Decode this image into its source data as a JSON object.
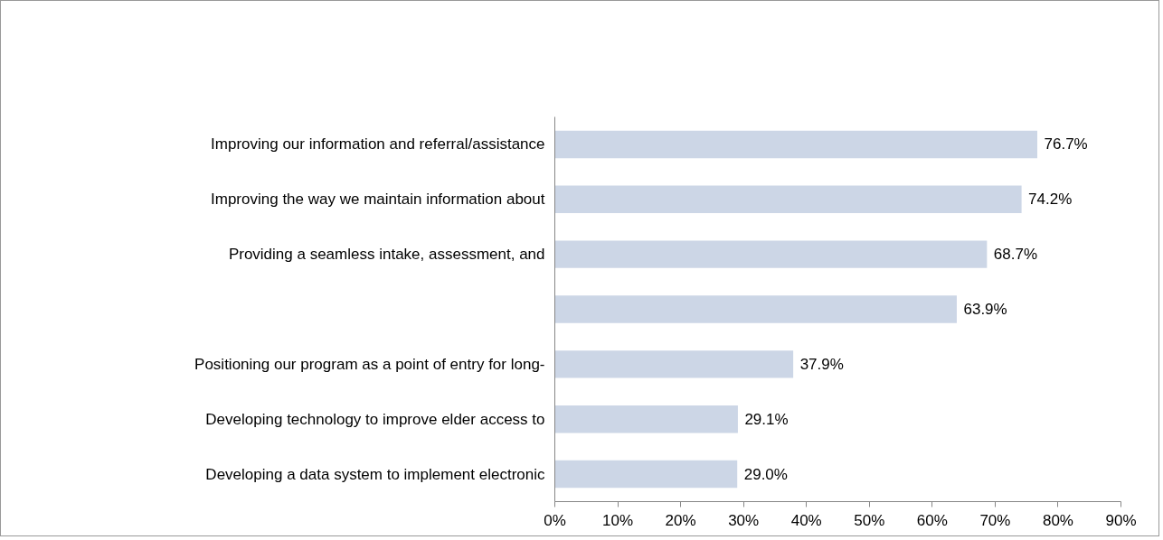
{
  "chart_data": {
    "type": "bar",
    "orientation": "horizontal",
    "categories": [
      "Improving our information and referral/assistance",
      "Improving the way we maintain information about",
      "Providing a seamless intake, assessment, and",
      null,
      "Positioning our program as a point of entry for long-",
      "Developing technology to improve elder access to",
      "Developing a data system to implement electronic"
    ],
    "values": [
      76.7,
      74.2,
      68.7,
      63.9,
      37.9,
      29.1,
      29.0
    ],
    "value_labels": [
      "76.7%",
      "74.2%",
      "68.7%",
      "63.9%",
      "37.9%",
      "29.1%",
      "29.0%"
    ],
    "color": "#ccd6e6",
    "xlim": [
      0,
      90
    ],
    "xticks": [
      {
        "value": 0,
        "label": "0%"
      },
      {
        "value": 10,
        "label": "10%"
      },
      {
        "value": 20,
        "label": "20%"
      },
      {
        "value": 30,
        "label": "30%"
      },
      {
        "value": 40,
        "label": "40%"
      },
      {
        "value": 50,
        "label": "50%"
      },
      {
        "value": 60,
        "label": "60%"
      },
      {
        "value": 70,
        "label": "70%"
      },
      {
        "value": 80,
        "label": "80%"
      },
      {
        "value": 90,
        "label": "90%"
      }
    ],
    "grid": false
  }
}
